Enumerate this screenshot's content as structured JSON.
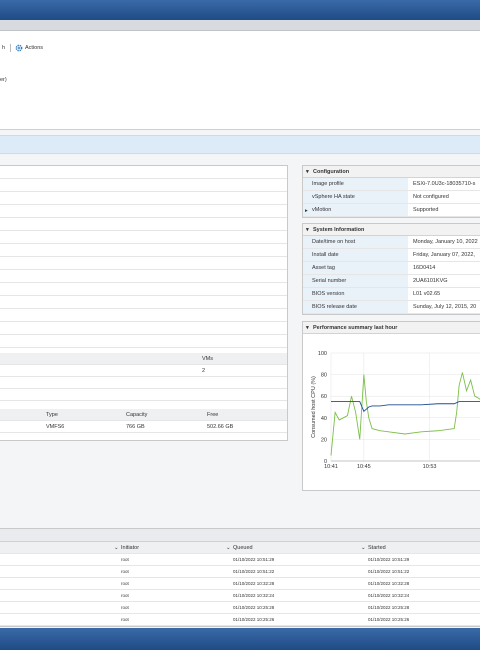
{
  "toolbar": {
    "refresh": "h",
    "actions": "Actions"
  },
  "header": {
    "subtitle": "er)"
  },
  "left_panel": {
    "vm_table": {
      "header": "VMs",
      "value": "2"
    },
    "storage_table": {
      "headers": [
        "Type",
        "Capacity",
        "Free"
      ],
      "row": [
        "VMFS6",
        "766 GB",
        "502.66 GB"
      ]
    }
  },
  "configuration": {
    "title": "Configuration",
    "rows": [
      [
        "Image profile",
        "ESXi-7.0U3c-18035710-s"
      ],
      [
        "vSphere HA state",
        "Not configured"
      ],
      [
        "vMotion",
        "Supported"
      ]
    ]
  },
  "system_information": {
    "title": "System Information",
    "rows": [
      [
        "Date/time on host",
        "Monday, January 10, 2022"
      ],
      [
        "Install date",
        "Friday, January 07, 2022,"
      ],
      [
        "Asset tag",
        "16D0414"
      ],
      [
        "Serial number",
        "2UA6101KVG"
      ],
      [
        "BIOS version",
        "L01 v02.65"
      ],
      [
        "BIOS release date",
        "Sunday, July 12, 2015, 20"
      ]
    ]
  },
  "performance": {
    "title": "Performance summary last hour"
  },
  "chart_data": {
    "type": "line",
    "y_label": "Consumed host CPU (%)",
    "x": [
      41,
      41.5,
      42,
      43,
      43.5,
      44,
      44.5,
      45,
      45.3,
      45.6,
      46,
      47,
      48,
      50,
      52,
      54,
      55,
      56,
      56.3,
      56.6,
      57,
      57.5,
      58,
      58.5,
      59,
      59.5
    ],
    "series": [
      {
        "color": "#7cbf4a",
        "values": [
          5,
          45,
          38,
          42,
          60,
          45,
          20,
          80,
          55,
          40,
          30,
          28,
          27,
          25,
          27,
          28,
          29,
          30,
          45,
          70,
          82,
          65,
          75,
          60,
          58,
          55
        ]
      },
      {
        "color": "#1f4f8f",
        "values": [
          55,
          55,
          55,
          55,
          55,
          55,
          55,
          46,
          48,
          50,
          51,
          51,
          52,
          52,
          52,
          53,
          53,
          53,
          54,
          55,
          55,
          55,
          55,
          55,
          55,
          55
        ]
      }
    ],
    "xlim": [
      41,
      59.75
    ],
    "xticks": [
      {
        "value": 41,
        "label": "10:41"
      },
      {
        "value": 45,
        "label": "10:45"
      },
      {
        "value": 53,
        "label": "10:53"
      }
    ],
    "ylim": [
      0,
      100
    ],
    "yticks": [
      0,
      20,
      40,
      60,
      80,
      100
    ],
    "grid": true
  },
  "tasks": {
    "headers": [
      "Initiator",
      "Queued",
      "Started"
    ],
    "rows": [
      [
        "root",
        "01/10/2022 10:51:29",
        "01/10/2022 10:51:29"
      ],
      [
        "root",
        "01/10/2022 10:51:22",
        "01/10/2022 10:51:22"
      ],
      [
        "root",
        "01/10/2022 10:32:28",
        "01/10/2022 10:32:28"
      ],
      [
        "root",
        "01/10/2022 10:32:24",
        "01/10/2022 10:32:24"
      ],
      [
        "root",
        "01/10/2022 10:25:28",
        "01/10/2022 10:25:28"
      ],
      [
        "root",
        "01/10/2022 10:25:26",
        "01/10/2022 10:25:26"
      ]
    ]
  }
}
